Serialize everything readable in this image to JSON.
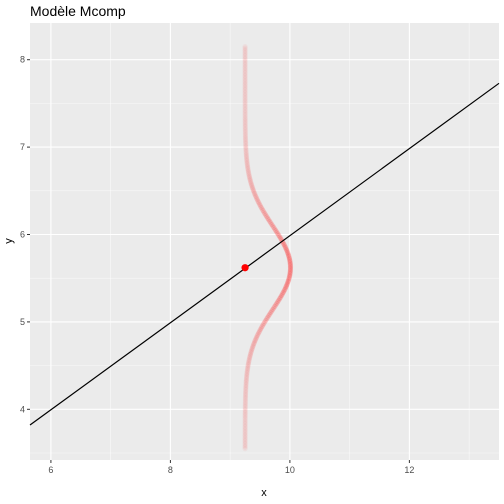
{
  "chart_data": {
    "type": "line",
    "title": "Modèle Mcomp",
    "xlabel": "x",
    "ylabel": "y",
    "xlim": [
      5.65,
      13.5
    ],
    "ylim": [
      3.42,
      8.42
    ],
    "x_ticks": [
      6,
      8,
      10,
      12
    ],
    "y_ticks": [
      4,
      5,
      6,
      7,
      8
    ],
    "grid": true,
    "legend": "none",
    "regression_line": {
      "color": "#000000",
      "points": [
        [
          5.65,
          3.82
        ],
        [
          13.5,
          7.73
        ]
      ]
    },
    "point": {
      "x": 9.25,
      "y": 5.62,
      "color": "#ff0000"
    },
    "density_curve": {
      "color": "#ff0000",
      "center_x": 9.25,
      "mean_y": 5.62,
      "sd_y": 0.48,
      "peak_width_x": 0.76,
      "y_range": [
        3.55,
        8.15
      ]
    }
  }
}
